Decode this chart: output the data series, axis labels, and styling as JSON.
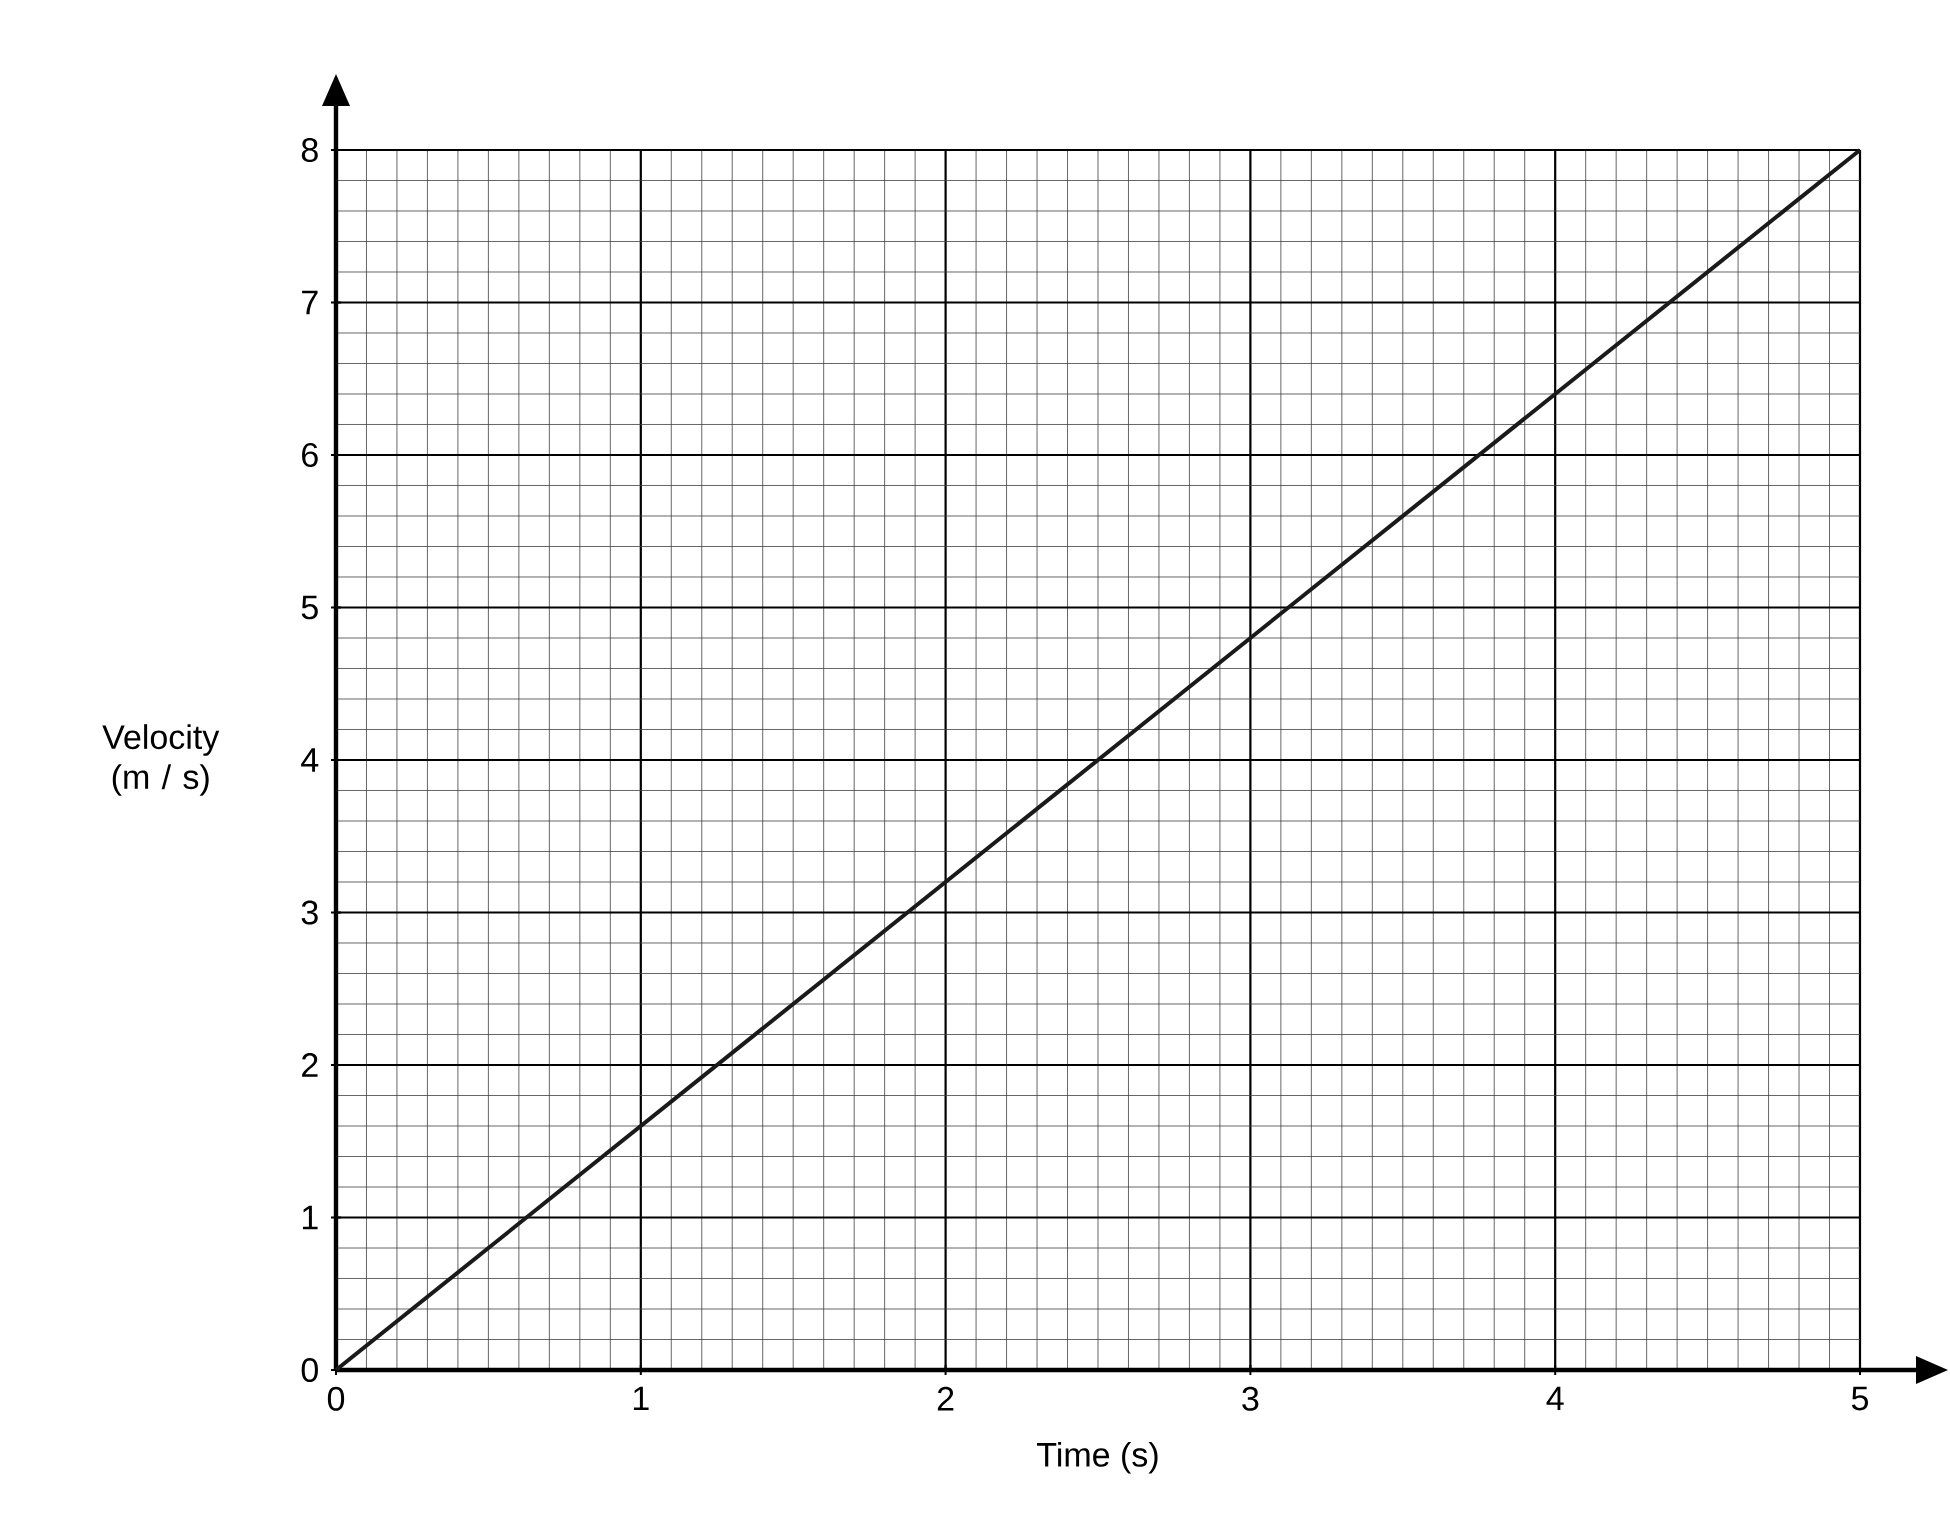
{
  "chart_data": {
    "type": "line",
    "xlabel": "Time (s)",
    "ylabel": "Velocity (m / s)",
    "x": [
      0,
      5
    ],
    "series": [
      {
        "color": "#1a1a1a",
        "values": [
          0,
          8
        ]
      }
    ],
    "xlim": [
      0,
      5
    ],
    "ylim": [
      0,
      8
    ],
    "xticks": [
      0,
      1,
      2,
      3,
      4,
      5
    ],
    "yticks": [
      0,
      1,
      2,
      3,
      4,
      5,
      6,
      7,
      8
    ],
    "grid": true
  }
}
